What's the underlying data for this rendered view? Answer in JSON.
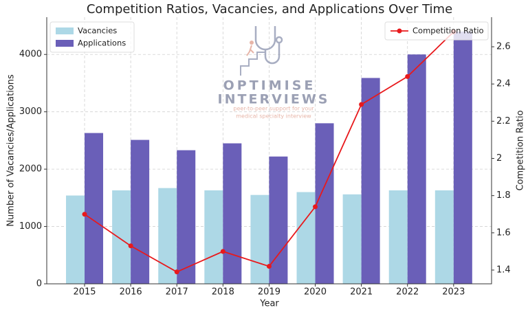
{
  "chart_data": {
    "type": "bar",
    "title": "Competition Ratios, Vacancies, and Applications Over Time",
    "x_label": "Year",
    "y_label": "Number of Vacancies/Applications",
    "y2_label": "Competition Ratio",
    "categories": [
      "2015",
      "2016",
      "2017",
      "2018",
      "2019",
      "2020",
      "2021",
      "2022",
      "2023"
    ],
    "series": [
      {
        "name": "Vacancies",
        "type": "bar",
        "color": "#add8e6",
        "legend": "upper left",
        "values": [
          1540,
          1630,
          1670,
          1630,
          1550,
          1600,
          1560,
          1630,
          1630
        ]
      },
      {
        "name": "Applications",
        "type": "bar",
        "color": "#6a5fb8",
        "legend": "upper left",
        "values": [
          2630,
          2510,
          2330,
          2450,
          2220,
          2800,
          3590,
          4000,
          4400
        ]
      },
      {
        "name": "Competition Ratio",
        "type": "line",
        "axis": "y2",
        "color": "#e8191c",
        "legend": "upper right",
        "values": [
          1.7,
          1.53,
          1.39,
          1.5,
          1.42,
          1.74,
          2.29,
          2.44,
          2.68
        ]
      }
    ],
    "ylim": [
      0,
      4650
    ],
    "yticks": [
      0,
      1000,
      2000,
      3000,
      4000
    ],
    "y2lim": [
      1.326,
      2.759
    ],
    "y2ticks": [
      1.4,
      1.6,
      1.8,
      2.0,
      2.2,
      2.4,
      2.6
    ],
    "grid": true,
    "watermark": {
      "brand1": "OPTIMISE",
      "brand2": "INTERVIEWS",
      "tagline1": "peer-to-peer support for your",
      "tagline2": "medical specialty interview"
    }
  }
}
